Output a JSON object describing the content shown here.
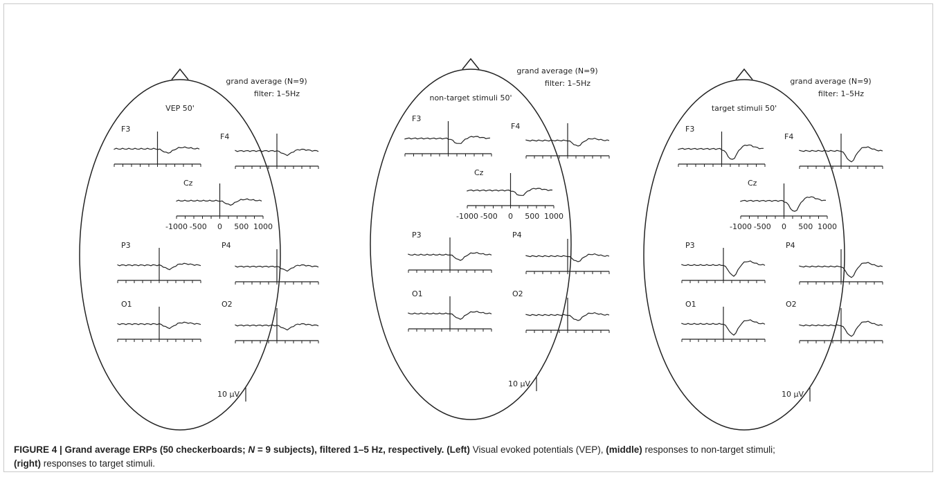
{
  "panels": [
    {
      "annotation": [
        "grand average (N=9)",
        "filter: 1–5Hz"
      ],
      "title": "VEP 50'",
      "channels": [
        "F3",
        "F4",
        "Cz",
        "P3",
        "P4",
        "O1",
        "O2"
      ],
      "time_ticks": [
        "-1000",
        "-500",
        "0",
        "500",
        "1000"
      ],
      "scale": "10 µV"
    },
    {
      "annotation": [
        "grand average (N=9)",
        "filter: 1–5Hz"
      ],
      "title": "non-target stimuli 50'",
      "channels": [
        "F3",
        "F4",
        "Cz",
        "P3",
        "P4",
        "O1",
        "O2"
      ],
      "time_ticks": [
        "-1000",
        "-500",
        "0",
        "500",
        "1000"
      ],
      "scale": "10 µV"
    },
    {
      "annotation": [
        "grand average (N=9)",
        "filter: 1–5Hz"
      ],
      "title": "target stimuli 50'",
      "channels": [
        "F3",
        "F4",
        "Cz",
        "P3",
        "P4",
        "O1",
        "O2"
      ],
      "time_ticks": [
        "-1000",
        "-500",
        "0",
        "500",
        "1000"
      ],
      "scale": "10 µV"
    }
  ],
  "caption": [
    "FIGURE 4 | Grand average ERPs (50 checkerboards; ",
    "N",
    " = 9 subjects), filtered 1–5 Hz, respectively. ",
    "(Left)",
    " Visual evoked potentials (VEP), ",
    "(middle)",
    " responses to non-target stimuli; ",
    "(right)",
    " responses to target stimuli."
  ]
}
